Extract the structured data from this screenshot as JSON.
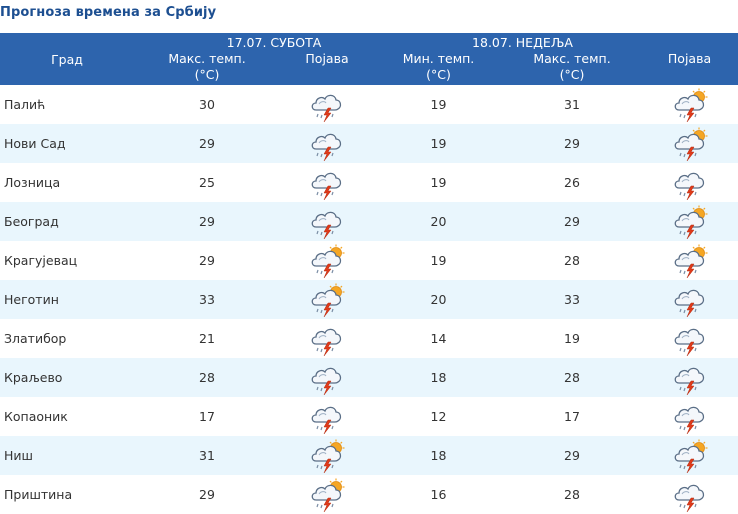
{
  "page_title": "Прогноза времена за Србију",
  "header": {
    "city": "Град",
    "day1": "17.07. СУБОТА",
    "day2": "18.07. НЕДЕЉА",
    "max_temp": "Макс. темп.",
    "min_temp": "Мин. темп.",
    "unit": "(°C)",
    "phenomenon": "Појава"
  },
  "rows": [
    {
      "city": "Палић",
      "d1_max": "30",
      "d1_icon": "storm-icon",
      "d2_min": "19",
      "d2_max": "31",
      "d2_icon": "sun-storm-icon"
    },
    {
      "city": "Нови Сад",
      "d1_max": "29",
      "d1_icon": "storm-icon",
      "d2_min": "19",
      "d2_max": "29",
      "d2_icon": "sun-storm-icon"
    },
    {
      "city": "Лозница",
      "d1_max": "25",
      "d1_icon": "storm-icon",
      "d2_min": "19",
      "d2_max": "26",
      "d2_icon": "storm-icon"
    },
    {
      "city": "Београд",
      "d1_max": "29",
      "d1_icon": "storm-icon",
      "d2_min": "20",
      "d2_max": "29",
      "d2_icon": "sun-storm-icon"
    },
    {
      "city": "Крагујевац",
      "d1_max": "29",
      "d1_icon": "sun-storm-icon",
      "d2_min": "19",
      "d2_max": "28",
      "d2_icon": "sun-storm-icon"
    },
    {
      "city": "Неготин",
      "d1_max": "33",
      "d1_icon": "sun-storm-icon",
      "d2_min": "20",
      "d2_max": "33",
      "d2_icon": "storm-icon"
    },
    {
      "city": "Златибор",
      "d1_max": "21",
      "d1_icon": "storm-icon",
      "d2_min": "14",
      "d2_max": "19",
      "d2_icon": "storm-icon"
    },
    {
      "city": "Краљево",
      "d1_max": "28",
      "d1_icon": "storm-icon",
      "d2_min": "18",
      "d2_max": "28",
      "d2_icon": "storm-icon"
    },
    {
      "city": "Копаоник",
      "d1_max": "17",
      "d1_icon": "storm-icon",
      "d2_min": "12",
      "d2_max": "17",
      "d2_icon": "storm-icon"
    },
    {
      "city": "Ниш",
      "d1_max": "31",
      "d1_icon": "sun-storm-icon",
      "d2_min": "18",
      "d2_max": "29",
      "d2_icon": "sun-storm-icon"
    },
    {
      "city": "Приштина",
      "d1_max": "29",
      "d1_icon": "sun-storm-icon",
      "d2_min": "16",
      "d2_max": "28",
      "d2_icon": "storm-icon"
    }
  ],
  "colors": {
    "header_bg": "#2d64ad",
    "title": "#1d4f91",
    "row_alt": "#e9f6fd",
    "lightning": "#e03a1a",
    "sun": "#f5a623",
    "cloud_stroke": "#5a6e86"
  }
}
